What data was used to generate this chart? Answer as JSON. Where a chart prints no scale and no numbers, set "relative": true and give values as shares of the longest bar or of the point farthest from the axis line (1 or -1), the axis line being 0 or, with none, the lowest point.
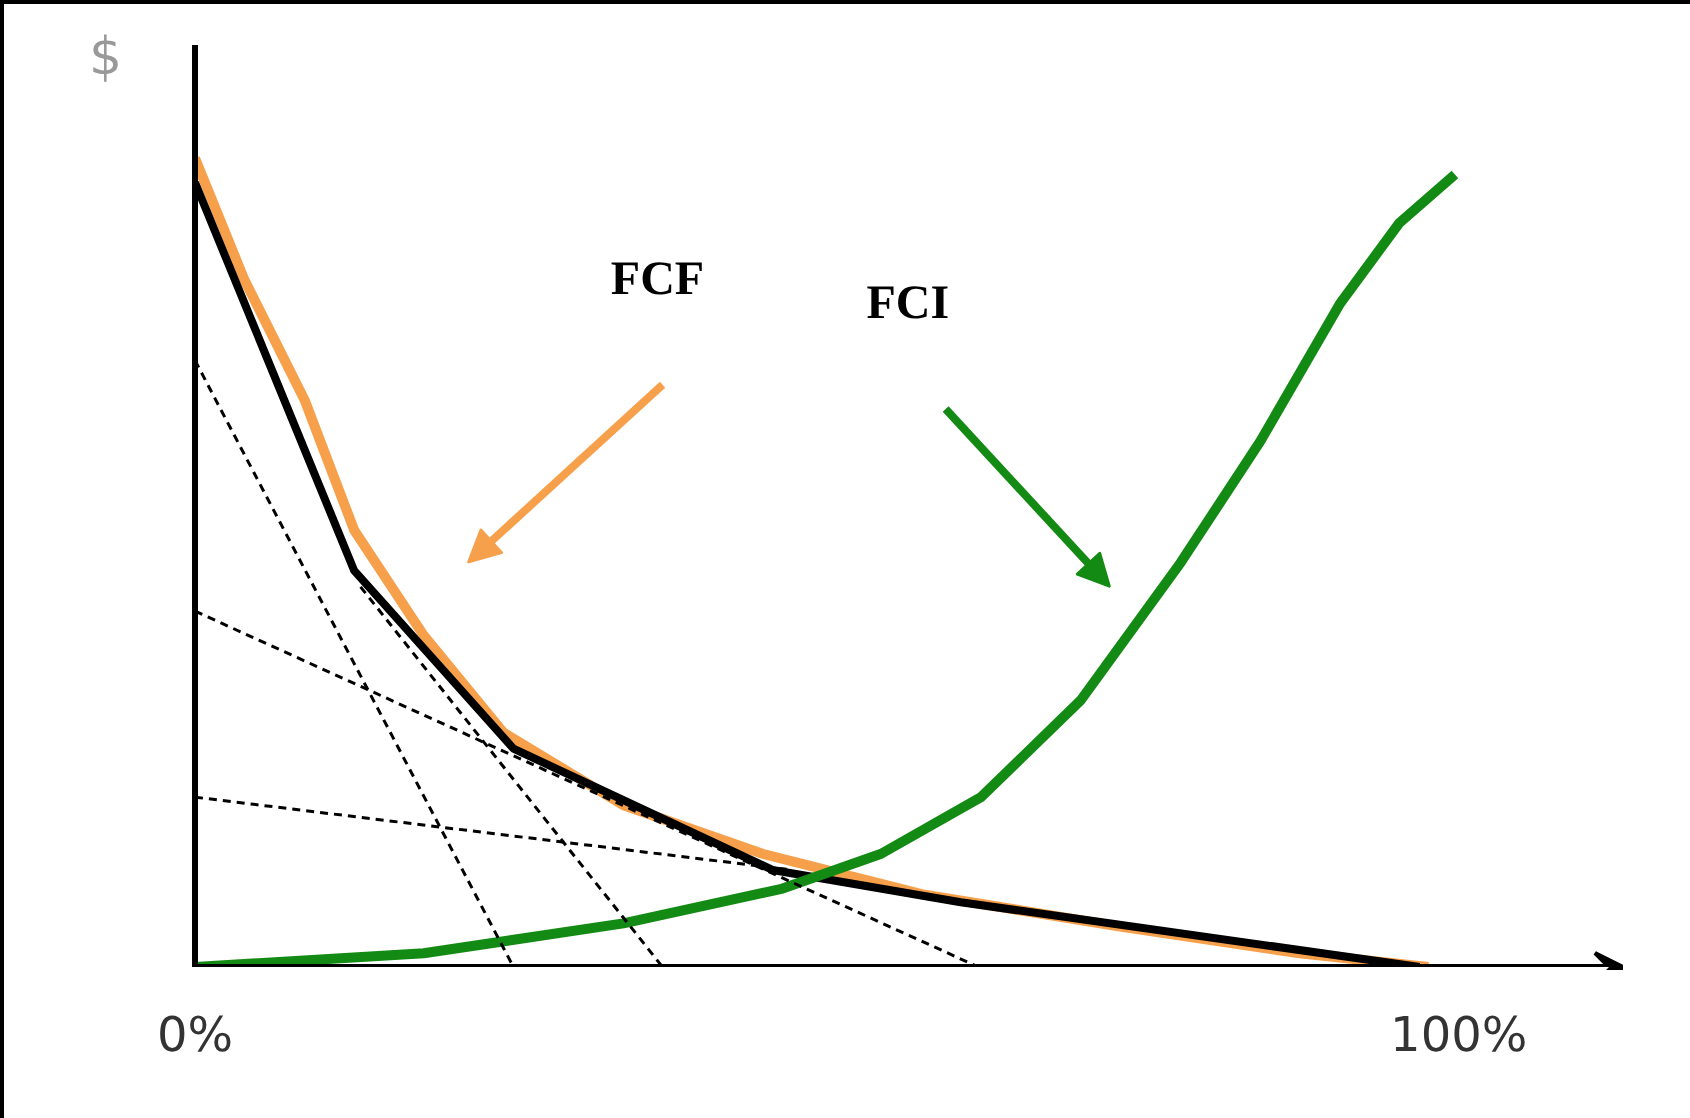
{
  "chart_data": {
    "type": "line",
    "relative": true,
    "ylabel": "$",
    "xlim": [
      0,
      113
    ],
    "xticks": [
      {
        "value": 0,
        "label": "0%"
      },
      {
        "value": 100,
        "label": "100%"
      }
    ],
    "annotations": [
      "FCF",
      "FCI"
    ],
    "tick_labels": "x",
    "grid": false,
    "marker": "none",
    "series": [
      {
        "color": "#f7a04b",
        "x": [
          0,
          3.9,
          8.7,
          12.6,
          18.1,
          24.4,
          33.9,
          44.9,
          57.5,
          73.2,
          87.4,
          97.6
        ],
        "values": [
          1.0,
          0.85,
          0.7,
          0.54,
          0.41,
          0.29,
          0.2,
          0.14,
          0.09,
          0.05,
          0.017,
          0
        ]
      },
      {
        "color": "#000000",
        "x": [
          0,
          12.6,
          25.2,
          45.7,
          60.6,
          96.9
        ],
        "values": [
          0.97,
          0.49,
          0.27,
          0.12,
          0.08,
          0
        ]
      },
      {
        "color": "#138a13",
        "x": [
          0,
          18.1,
          33.9,
          46.5,
          54.3,
          62.2,
          70.1,
          78,
          84.3,
          90.6,
          95.3,
          99.7
        ],
        "values": [
          0,
          0.017,
          0.054,
          0.097,
          0.14,
          0.21,
          0.33,
          0.5,
          0.65,
          0.82,
          0.92,
          0.98
        ]
      },
      {
        "color": "#000000",
        "line_style": "dashed",
        "x": [
          0,
          25.2
        ],
        "values": [
          0.75,
          0
        ]
      },
      {
        "color": "#000000",
        "line_style": "dashed",
        "x": [
          13.1,
          37
        ],
        "values": [
          0.47,
          0
        ]
      },
      {
        "color": "#000000",
        "line_style": "dashed",
        "x": [
          0,
          62
        ],
        "values": [
          0.44,
          0
        ]
      },
      {
        "color": "#000000",
        "line_style": "dashed",
        "x": [
          0,
          47.2
        ],
        "values": [
          0.21,
          0.12
        ]
      }
    ]
  }
}
